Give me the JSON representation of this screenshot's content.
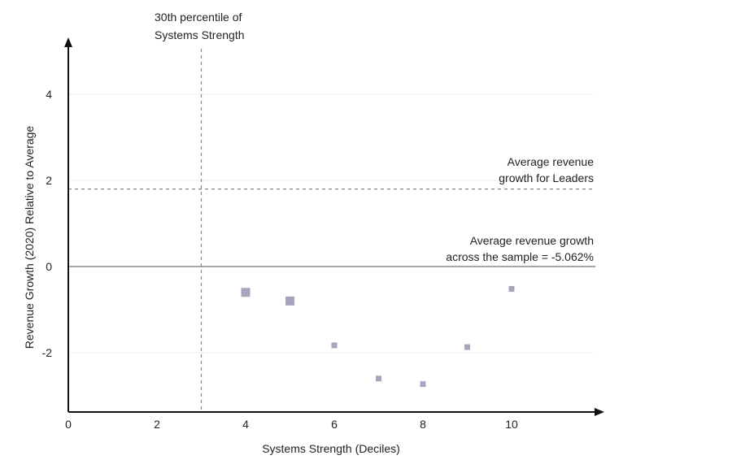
{
  "chart_data": {
    "type": "scatter",
    "xlabel": "Systems Strength (Deciles)",
    "ylabel": "Revenue Growth (2020)  Relative to Average",
    "xlim": [
      0,
      12
    ],
    "ylim": [
      -3.4,
      5.2
    ],
    "x_ticks": [
      0,
      2,
      4,
      6,
      8,
      10
    ],
    "y_ticks": [
      -2,
      0,
      2,
      4
    ],
    "grid": true,
    "points": [
      {
        "x": 4,
        "y": -0.6,
        "size": "large"
      },
      {
        "x": 5,
        "y": -0.8,
        "size": "large"
      },
      {
        "x": 6,
        "y": -1.83,
        "size": "small"
      },
      {
        "x": 7,
        "y": -2.6,
        "size": "small"
      },
      {
        "x": 8,
        "y": -2.73,
        "size": "small"
      },
      {
        "x": 9,
        "y": -1.87,
        "size": "small"
      },
      {
        "x": 10,
        "y": -0.52,
        "size": "small"
      }
    ],
    "reference_lines": {
      "vertical": {
        "x": 3,
        "style": "dashed",
        "label_lines": [
          "30th percentile of",
          "Systems Strength"
        ]
      },
      "leaders": {
        "y": 1.8,
        "style": "dashed",
        "label_lines": [
          "Average revenue",
          "growth for Leaders"
        ]
      },
      "sample": {
        "y": 0,
        "style": "solid",
        "label_lines": [
          "Average revenue growth",
          "across the sample = -5.062%"
        ]
      }
    },
    "colors": {
      "marker": "#a5a5bd",
      "axis": "#111111",
      "grid": "#ececec",
      "dashed": "#8a8a8a",
      "zero_line": "#8a8a8a"
    }
  }
}
